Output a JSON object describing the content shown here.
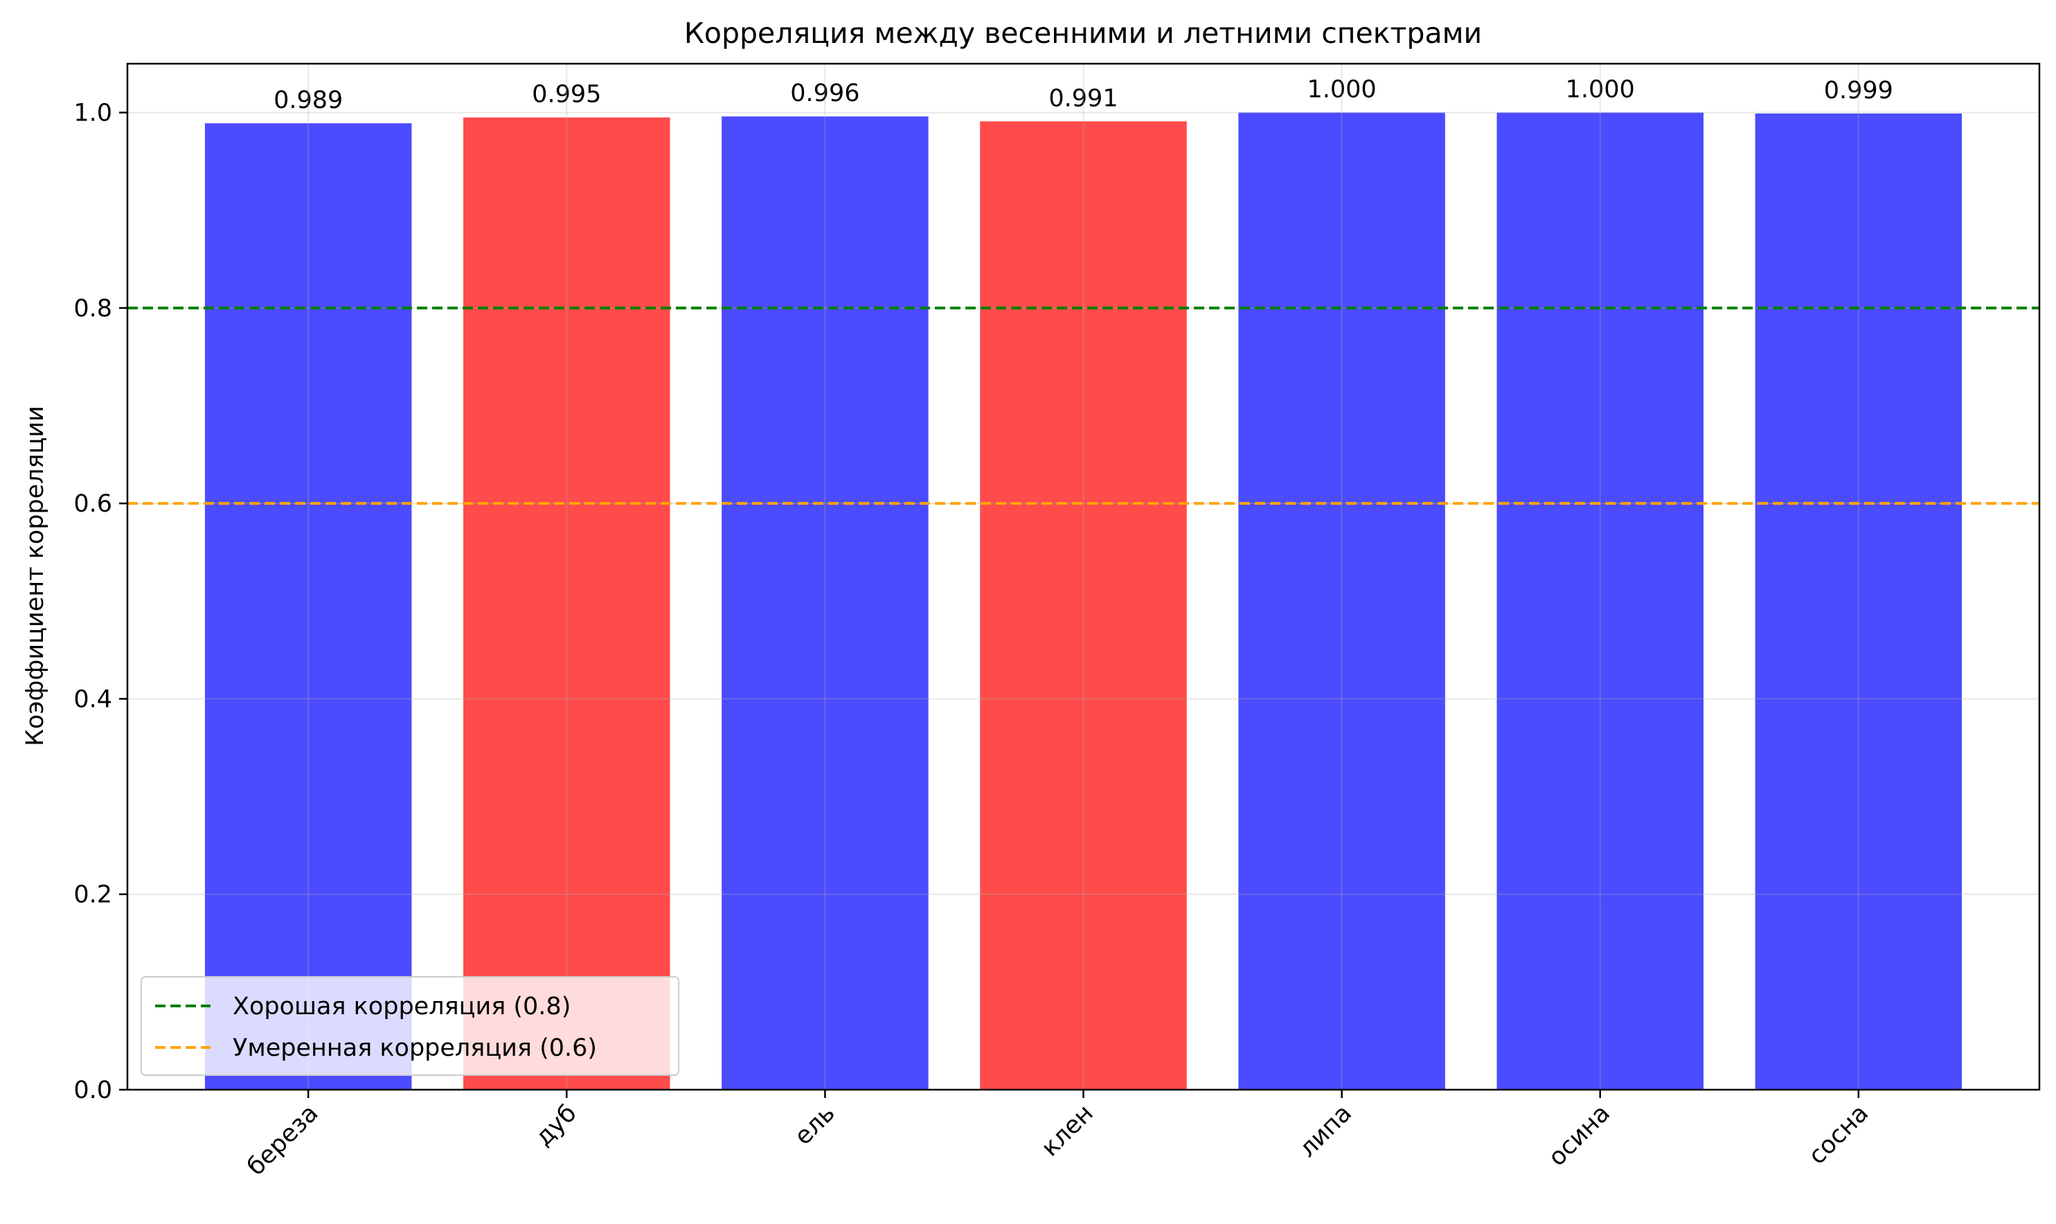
{
  "chart_data": {
    "type": "bar",
    "title": "Корреляция между весенними и летними спектрами",
    "xlabel": "",
    "ylabel": "Коэффициент корреляции",
    "categories": [
      "береза",
      "дуб",
      "ель",
      "клен",
      "липа",
      "осина",
      "сосна"
    ],
    "values": [
      0.989,
      0.995,
      0.996,
      0.991,
      1.0,
      1.0,
      0.999
    ],
    "value_labels": [
      "0.989",
      "0.995",
      "0.996",
      "0.991",
      "1.000",
      "1.000",
      "0.999"
    ],
    "bar_colors": [
      "#4b4bff",
      "#ff4b4b",
      "#4b4bff",
      "#ff4b4b",
      "#4b4bff",
      "#4b4bff",
      "#4b4bff"
    ],
    "ylim": [
      0,
      1.05
    ],
    "yticks": [
      0.0,
      0.2,
      0.4,
      0.6,
      0.8,
      1.0
    ],
    "ytick_labels": [
      "0.0",
      "0.2",
      "0.4",
      "0.6",
      "0.8",
      "1.0"
    ],
    "grid": true,
    "reference_lines": [
      {
        "label": "Хорошая корреляция (0.8)",
        "value": 0.8,
        "color": "#008000",
        "style": "dashed"
      },
      {
        "label": "Умеренная корреляция (0.6)",
        "value": 0.6,
        "color": "#ffa500",
        "style": "dashed"
      }
    ],
    "legend_position": "lower-left"
  }
}
